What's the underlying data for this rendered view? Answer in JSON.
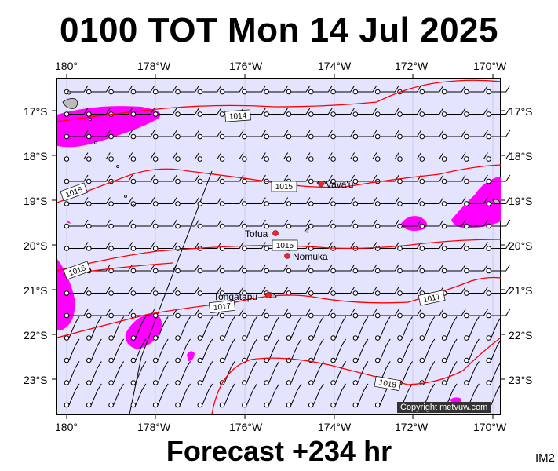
{
  "title": "0100 TOT Mon 14 Jul 2025",
  "footer": "Forecast +234 hr",
  "image_code": "IM2",
  "copyright": "Copyright metvuw.com",
  "lon_labels": [
    "180°",
    "178°W",
    "176°W",
    "174°W",
    "172°W",
    "170°W"
  ],
  "lat_labels": [
    "17°S",
    "18°S",
    "19°S",
    "20°S",
    "21°S",
    "22°S",
    "23°S"
  ],
  "map_data": {
    "type": "weather-map",
    "lon_range": [
      180,
      170.2
    ],
    "lat_range": [
      -16.5,
      -23.7
    ],
    "isobar_labels": [
      "1014",
      "1015",
      "1015",
      "1015",
      "1016",
      "1017",
      "1017",
      "1018"
    ],
    "places": [
      {
        "name": "Vava'u",
        "lon": -174.0,
        "lat": -18.6
      },
      {
        "name": "Tofua",
        "lon": -175.07,
        "lat": -19.75
      },
      {
        "name": "Nomuka",
        "lon": -174.8,
        "lat": -20.25
      },
      {
        "name": "Tongatapu",
        "lon": -175.2,
        "lat": -21.15
      }
    ],
    "colors": {
      "ocean": "#e4e4ff",
      "rain": "#ff00ff",
      "isobar": "#ff0000",
      "place": "#ff2020"
    }
  }
}
